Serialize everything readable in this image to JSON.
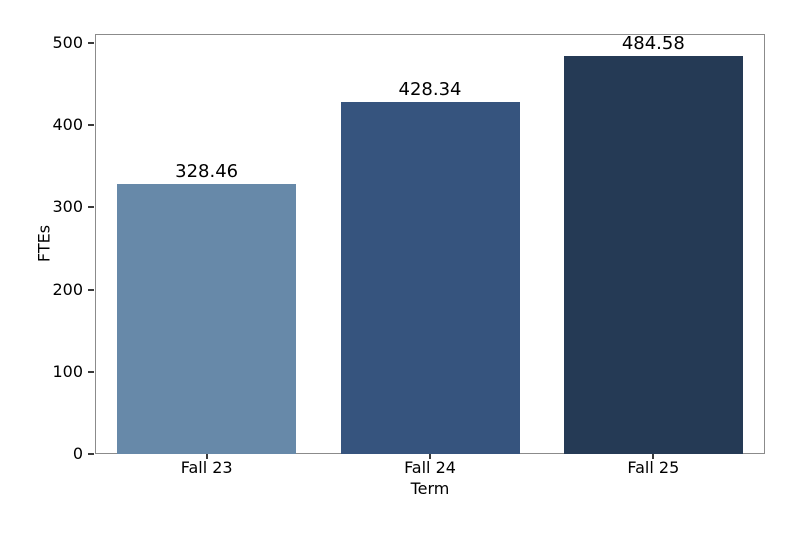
{
  "chart_data": {
    "type": "bar",
    "categories": [
      "Fall 23",
      "Fall 24",
      "Fall 25"
    ],
    "values": [
      328.46,
      428.34,
      484.58
    ],
    "bar_labels": [
      "328.46",
      "428.34",
      "484.58"
    ],
    "title": "",
    "xlabel": "Term",
    "ylabel": "FTEs",
    "ylim": [
      0,
      511
    ],
    "yticks": [
      0,
      100,
      200,
      300,
      400,
      500
    ],
    "ytick_labels": [
      "0",
      "100",
      "200",
      "300",
      "400",
      "500"
    ],
    "bar_colors": [
      "#6789a9",
      "#36547e",
      "#253a55"
    ],
    "bar_width_fraction": 0.8,
    "grid": false,
    "legend": null,
    "spine_color": "#8b8b8b",
    "tick_color": "#3a3a3a",
    "text_color": "#000000",
    "background_color": "#ffffff"
  }
}
